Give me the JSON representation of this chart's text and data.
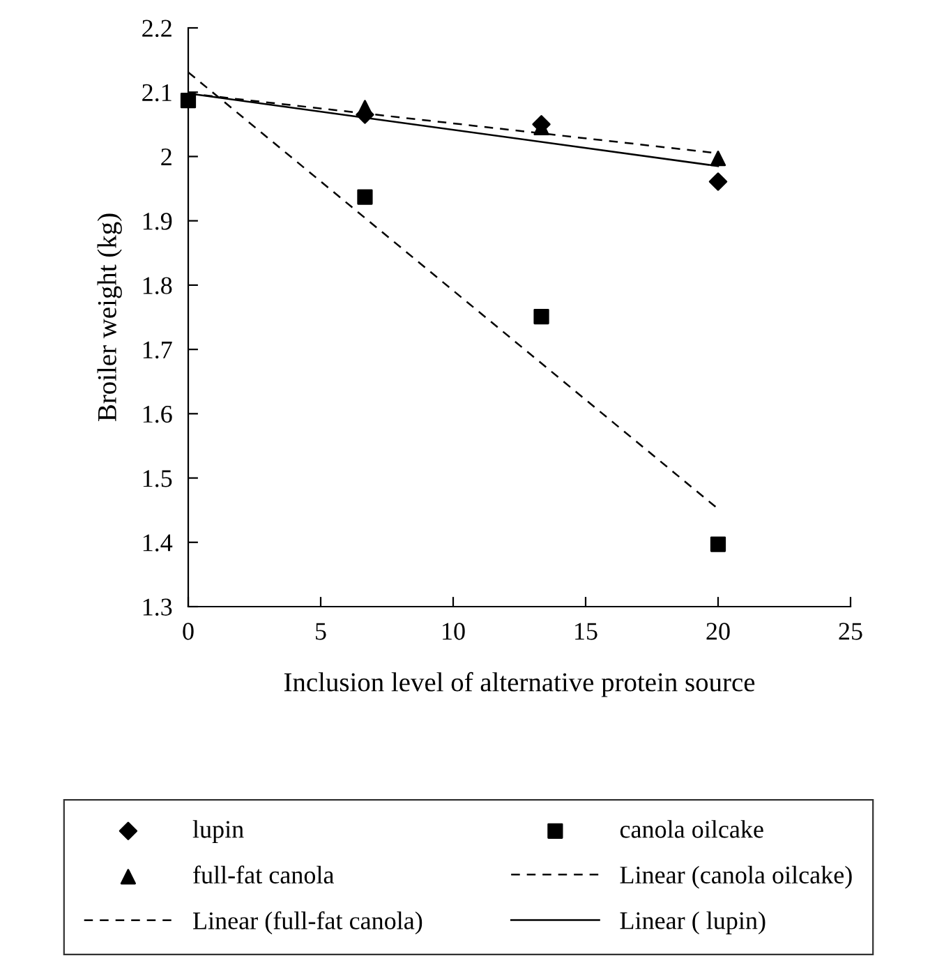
{
  "chart_data": {
    "type": "scatter",
    "xlabel": "Inclusion level of alternative protein source",
    "ylabel": "Broiler weight (kg)",
    "xlim": [
      0,
      25
    ],
    "xticks": [
      0,
      5,
      10,
      15,
      20,
      25
    ],
    "ylim": [
      1.3,
      2.2
    ],
    "yticks": [
      1.3,
      1.4,
      1.5,
      1.6,
      1.7,
      1.8,
      1.9,
      2,
      2.1,
      2.2
    ],
    "grid": false,
    "legend": "bottom",
    "series": [
      {
        "name": "lupin",
        "marker": "diamond",
        "color": "#000000",
        "x": [
          6.67,
          13.33,
          20
        ],
        "values": [
          2.065,
          2.05,
          1.961
        ]
      },
      {
        "name": "canola oilcake",
        "marker": "square",
        "color": "#000000",
        "x": [
          0,
          6.67,
          13.33,
          20
        ],
        "values": [
          2.087,
          1.937,
          1.751,
          1.397
        ]
      },
      {
        "name": "full-fat canola",
        "marker": "triangle",
        "color": "#000000",
        "x": [
          6.67,
          13.33,
          20
        ],
        "values": [
          2.076,
          2.045,
          1.997
        ]
      },
      {
        "name": "Linear (canola oilcake)",
        "type": "line",
        "line_style": "dashed",
        "marker": "none",
        "color": "#000000",
        "x": [
          0,
          20
        ],
        "values": [
          2.131,
          1.452
        ]
      },
      {
        "name": "Linear (full-fat canola)",
        "type": "line",
        "line_style": "dashed",
        "marker": "none",
        "color": "#000000",
        "x": [
          0,
          20
        ],
        "values": [
          2.098,
          2.005
        ]
      },
      {
        "name": "Linear ( lupin)",
        "type": "line",
        "line_style": "solid",
        "marker": "none",
        "color": "#000000",
        "x": [
          0,
          20
        ],
        "values": [
          2.098,
          1.985
        ]
      }
    ]
  }
}
